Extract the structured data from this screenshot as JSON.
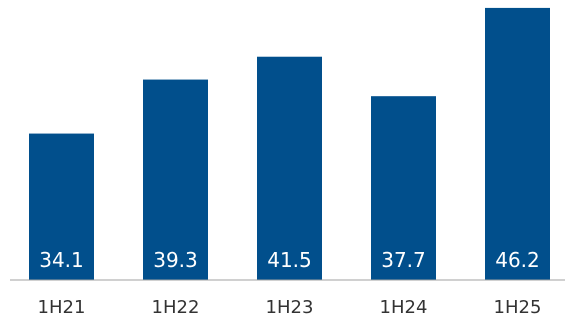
{
  "chart_data": {
    "type": "bar",
    "categories": [
      "1H21",
      "1H22",
      "1H23",
      "1H24",
      "1H25"
    ],
    "values": [
      34.1,
      39.3,
      41.5,
      37.7,
      46.2
    ],
    "data_labels": [
      "34.1",
      "39.3",
      "41.5",
      "37.7",
      "46.2"
    ],
    "title": "",
    "xlabel": "",
    "ylabel": "",
    "ylim": [
      20,
      47
    ],
    "grid": false,
    "legend": "none",
    "bar_color": "#014f8c",
    "label_color": "#ffffff"
  }
}
